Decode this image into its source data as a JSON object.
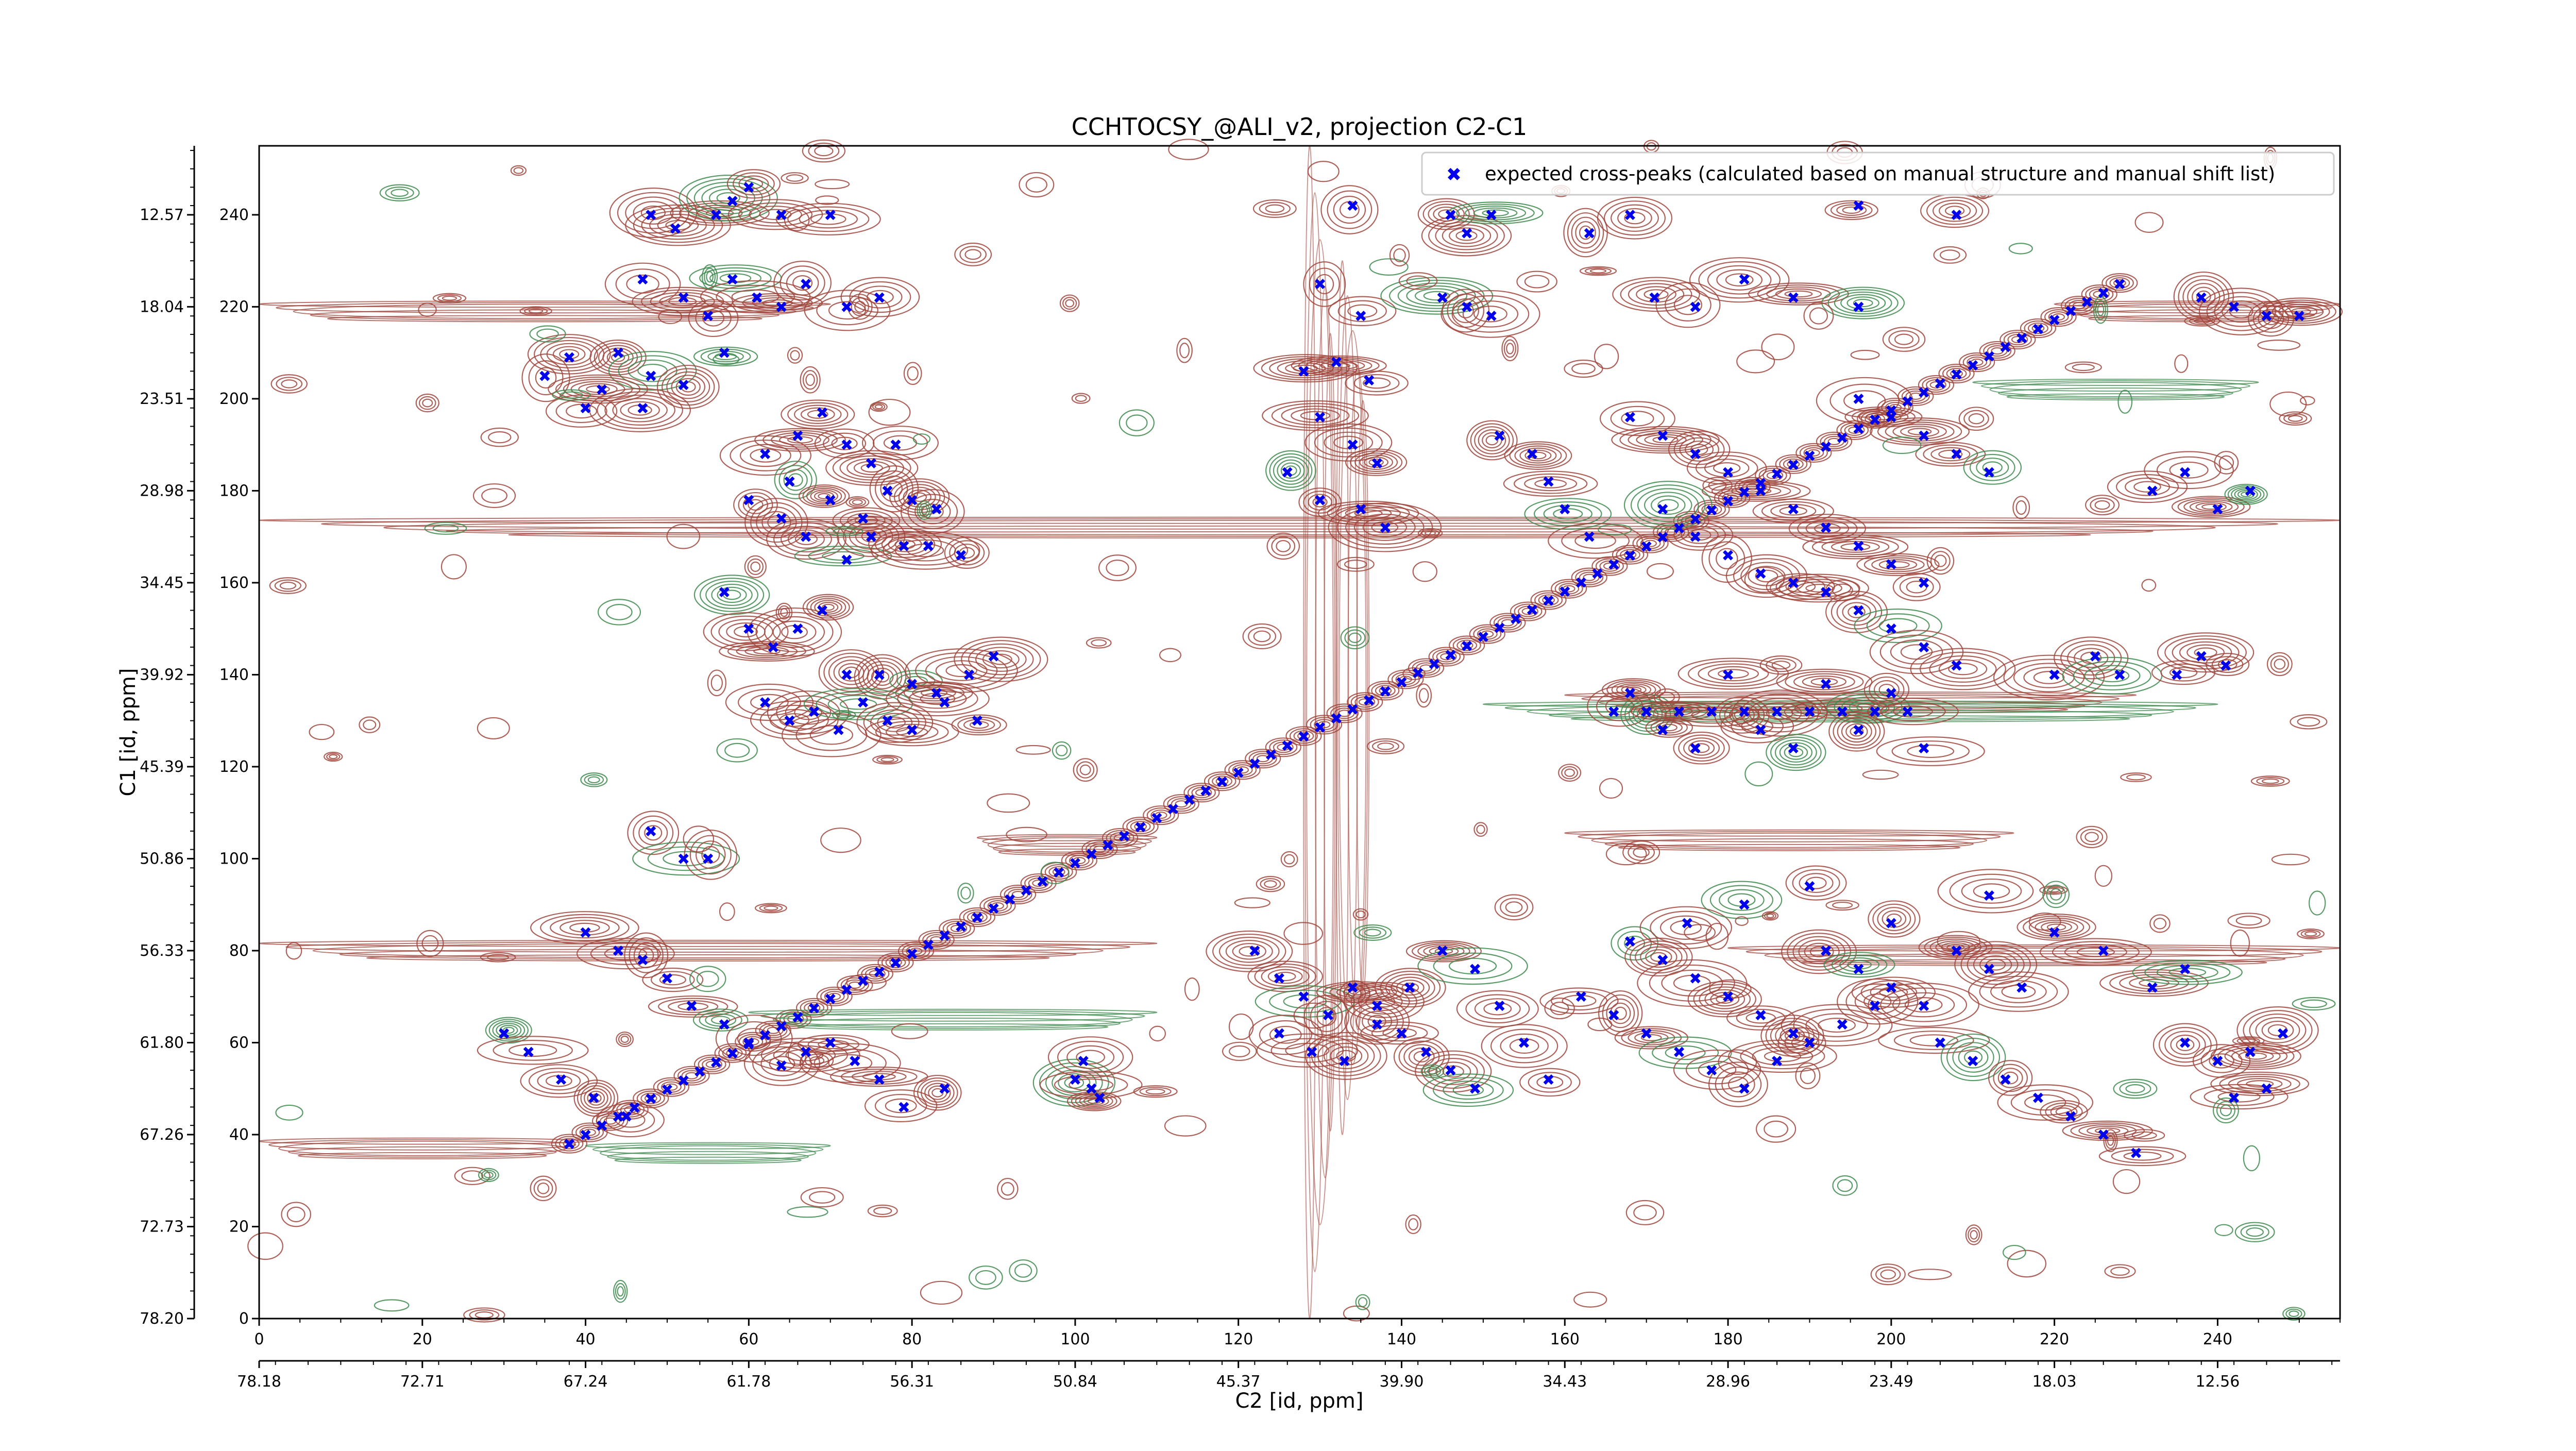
{
  "chart_data": {
    "type": "scatter",
    "title": "CCHTOCSY_@ALI_v2, projection C2-C1",
    "xlabel": "C2 [id, ppm]",
    "ylabel": "C1 [id, ppm]",
    "xlim": [
      0,
      255
    ],
    "ylim": [
      0,
      255
    ],
    "x_ticks": [
      0,
      20,
      40,
      60,
      80,
      100,
      120,
      140,
      160,
      180,
      200,
      220,
      240
    ],
    "y_ticks": [
      0,
      20,
      40,
      60,
      80,
      100,
      120,
      140,
      160,
      180,
      200,
      220,
      240
    ],
    "x_ppm_tick_labels": [
      "78.18",
      "72.71",
      "67.24",
      "61.78",
      "56.31",
      "50.84",
      "45.37",
      "39.90",
      "34.43",
      "28.96",
      "23.49",
      "18.03",
      "12.56"
    ],
    "y_ppm_tick_labels": [
      "78.20",
      "72.73",
      "67.26",
      "61.80",
      "56.33",
      "50.86",
      "45.39",
      "39.92",
      "34.45",
      "28.98",
      "23.51",
      "18.04",
      "12.57"
    ],
    "grid": false,
    "legend_position": "top-right",
    "legend": "expected cross-peaks (calculated based on manual structure and manual shift list)",
    "colors": {
      "points": "#0000ee",
      "positive_contours": "#a0453c",
      "negative_contours": "#3d8a4e"
    },
    "diagonal": {
      "from": [
        38,
        38
      ],
      "to": [
        228,
        225
      ]
    },
    "diagonal_points_count": 96,
    "series": [
      {
        "name": "expected cross-peaks (calculated based on manual structure and manual shift list)",
        "points": [
          [
            48,
            240
          ],
          [
            51,
            237
          ],
          [
            56,
            240
          ],
          [
            58,
            243
          ],
          [
            64,
            240
          ],
          [
            70,
            240
          ],
          [
            60,
            246
          ],
          [
            47,
            226
          ],
          [
            52,
            222
          ],
          [
            55,
            218
          ],
          [
            58,
            226
          ],
          [
            61,
            222
          ],
          [
            64,
            220
          ],
          [
            67,
            225
          ],
          [
            72,
            220
          ],
          [
            76,
            222
          ],
          [
            44,
            210
          ],
          [
            48,
            205
          ],
          [
            52,
            203
          ],
          [
            38,
            209
          ],
          [
            35,
            205
          ],
          [
            42,
            202
          ],
          [
            40,
            198
          ],
          [
            47,
            198
          ],
          [
            57,
            210
          ],
          [
            62,
            188
          ],
          [
            66,
            192
          ],
          [
            69,
            197
          ],
          [
            72,
            190
          ],
          [
            75,
            186
          ],
          [
            78,
            190
          ],
          [
            65,
            182
          ],
          [
            70,
            178
          ],
          [
            74,
            174
          ],
          [
            77,
            180
          ],
          [
            80,
            178
          ],
          [
            83,
            176
          ],
          [
            67,
            170
          ],
          [
            72,
            165
          ],
          [
            75,
            170
          ],
          [
            79,
            168
          ],
          [
            82,
            168
          ],
          [
            86,
            166
          ],
          [
            60,
            178
          ],
          [
            64,
            174
          ],
          [
            57,
            158
          ],
          [
            60,
            150
          ],
          [
            63,
            146
          ],
          [
            66,
            150
          ],
          [
            69,
            154
          ],
          [
            72,
            140
          ],
          [
            76,
            140
          ],
          [
            80,
            138
          ],
          [
            83,
            136
          ],
          [
            88,
            130
          ],
          [
            62,
            134
          ],
          [
            65,
            130
          ],
          [
            68,
            132
          ],
          [
            71,
            128
          ],
          [
            74,
            134
          ],
          [
            77,
            130
          ],
          [
            80,
            128
          ],
          [
            84,
            134
          ],
          [
            87,
            140
          ],
          [
            90,
            144
          ],
          [
            48,
            106
          ],
          [
            52,
            100
          ],
          [
            55,
            100
          ],
          [
            40,
            84
          ],
          [
            44,
            80
          ],
          [
            47,
            78
          ],
          [
            50,
            74
          ],
          [
            53,
            68
          ],
          [
            57,
            64
          ],
          [
            60,
            60
          ],
          [
            70,
            60
          ],
          [
            73,
            56
          ],
          [
            76,
            52
          ],
          [
            79,
            46
          ],
          [
            84,
            50
          ],
          [
            30,
            62
          ],
          [
            33,
            58
          ],
          [
            37,
            52
          ],
          [
            41,
            48
          ],
          [
            45,
            44
          ],
          [
            64,
            55
          ],
          [
            67,
            58
          ],
          [
            100,
            52
          ],
          [
            101,
            56
          ],
          [
            102,
            50
          ],
          [
            103,
            48
          ],
          [
            134,
            242
          ],
          [
            146,
            240
          ],
          [
            148,
            236
          ],
          [
            151,
            240
          ],
          [
            163,
            236
          ],
          [
            168,
            240
          ],
          [
            196,
            242
          ],
          [
            208,
            240
          ],
          [
            130,
            225
          ],
          [
            135,
            218
          ],
          [
            145,
            222
          ],
          [
            148,
            220
          ],
          [
            151,
            218
          ],
          [
            171,
            222
          ],
          [
            176,
            220
          ],
          [
            182,
            226
          ],
          [
            188,
            222
          ],
          [
            196,
            220
          ],
          [
            128,
            206
          ],
          [
            132,
            208
          ],
          [
            136,
            204
          ],
          [
            130,
            196
          ],
          [
            134,
            190
          ],
          [
            137,
            186
          ],
          [
            126,
            184
          ],
          [
            130,
            178
          ],
          [
            135,
            176
          ],
          [
            138,
            172
          ],
          [
            152,
            192
          ],
          [
            156,
            188
          ],
          [
            158,
            182
          ],
          [
            160,
            176
          ],
          [
            163,
            170
          ],
          [
            168,
            196
          ],
          [
            172,
            192
          ],
          [
            176,
            188
          ],
          [
            180,
            184
          ],
          [
            184,
            180
          ],
          [
            172,
            176
          ],
          [
            176,
            170
          ],
          [
            180,
            166
          ],
          [
            184,
            162
          ],
          [
            188,
            160
          ],
          [
            192,
            158
          ],
          [
            196,
            154
          ],
          [
            200,
            150
          ],
          [
            204,
            146
          ],
          [
            208,
            142
          ],
          [
            196,
            200
          ],
          [
            200,
            196
          ],
          [
            204,
            192
          ],
          [
            208,
            188
          ],
          [
            212,
            184
          ],
          [
            188,
            176
          ],
          [
            192,
            172
          ],
          [
            196,
            168
          ],
          [
            200,
            164
          ],
          [
            204,
            160
          ],
          [
            166,
            132
          ],
          [
            170,
            132
          ],
          [
            174,
            132
          ],
          [
            178,
            132
          ],
          [
            182,
            132
          ],
          [
            186,
            132
          ],
          [
            190,
            132
          ],
          [
            194,
            132
          ],
          [
            198,
            132
          ],
          [
            202,
            132
          ],
          [
            168,
            136
          ],
          [
            172,
            128
          ],
          [
            176,
            124
          ],
          [
            180,
            140
          ],
          [
            184,
            128
          ],
          [
            188,
            124
          ],
          [
            192,
            138
          ],
          [
            196,
            128
          ],
          [
            200,
            136
          ],
          [
            204,
            124
          ],
          [
            220,
            140
          ],
          [
            225,
            144
          ],
          [
            228,
            140
          ],
          [
            235,
            140
          ],
          [
            238,
            144
          ],
          [
            241,
            142
          ],
          [
            232,
            180
          ],
          [
            236,
            184
          ],
          [
            240,
            176
          ],
          [
            244,
            180
          ],
          [
            238,
            222
          ],
          [
            242,
            220
          ],
          [
            246,
            218
          ],
          [
            250,
            218
          ],
          [
            122,
            80
          ],
          [
            125,
            74
          ],
          [
            128,
            70
          ],
          [
            131,
            66
          ],
          [
            134,
            72
          ],
          [
            137,
            68
          ],
          [
            140,
            62
          ],
          [
            143,
            58
          ],
          [
            146,
            54
          ],
          [
            149,
            50
          ],
          [
            125,
            62
          ],
          [
            129,
            58
          ],
          [
            133,
            56
          ],
          [
            137,
            64
          ],
          [
            141,
            72
          ],
          [
            145,
            80
          ],
          [
            149,
            76
          ],
          [
            152,
            68
          ],
          [
            155,
            60
          ],
          [
            158,
            52
          ],
          [
            162,
            70
          ],
          [
            166,
            66
          ],
          [
            170,
            62
          ],
          [
            174,
            58
          ],
          [
            178,
            54
          ],
          [
            182,
            50
          ],
          [
            186,
            56
          ],
          [
            190,
            60
          ],
          [
            194,
            64
          ],
          [
            198,
            68
          ],
          [
            168,
            82
          ],
          [
            172,
            78
          ],
          [
            176,
            74
          ],
          [
            180,
            70
          ],
          [
            184,
            66
          ],
          [
            188,
            62
          ],
          [
            192,
            80
          ],
          [
            196,
            76
          ],
          [
            200,
            72
          ],
          [
            204,
            68
          ],
          [
            208,
            80
          ],
          [
            212,
            76
          ],
          [
            216,
            72
          ],
          [
            206,
            60
          ],
          [
            210,
            56
          ],
          [
            214,
            52
          ],
          [
            218,
            48
          ],
          [
            222,
            44
          ],
          [
            226,
            40
          ],
          [
            230,
            36
          ],
          [
            175,
            86
          ],
          [
            182,
            90
          ],
          [
            190,
            94
          ],
          [
            200,
            86
          ],
          [
            212,
            92
          ],
          [
            220,
            84
          ],
          [
            226,
            80
          ],
          [
            232,
            72
          ],
          [
            236,
            76
          ],
          [
            236,
            60
          ],
          [
            240,
            56
          ],
          [
            244,
            58
          ],
          [
            248,
            62
          ],
          [
            242,
            48
          ],
          [
            246,
            50
          ]
        ]
      }
    ]
  }
}
